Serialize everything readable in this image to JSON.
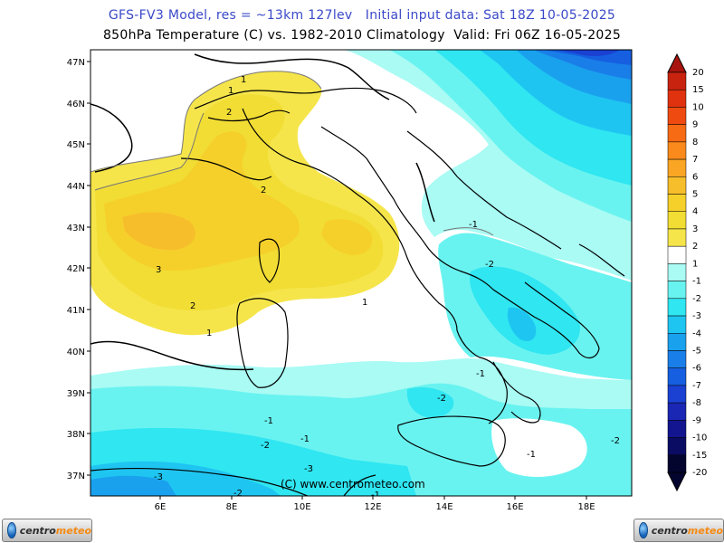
{
  "header": {
    "title_line1": "GFS-FV3 Model, res = ~13km 127lev   Initial input data: Sat 18Z 10-05-2025",
    "title_line2": "850hPa Temperature (C) vs. 1982-2010 Climatology  Valid: Fri 06Z 16-05-2025"
  },
  "map": {
    "lat_labels": [
      "47N",
      "46N",
      "45N",
      "44N",
      "43N",
      "42N",
      "41N",
      "40N",
      "39N",
      "38N",
      "37N"
    ],
    "lon_labels": [
      "6E",
      "8E",
      "10E",
      "12E",
      "14E",
      "16E",
      "18E"
    ],
    "copyright": "(C) www.centrometeo.com",
    "contour_labels": [
      "1",
      "1",
      "2",
      "2",
      "3",
      "2",
      "1",
      "1",
      "-1",
      "-1",
      "-2",
      "-1",
      "-2",
      "-1",
      "-2",
      "-1",
      "-2",
      "-3",
      "-3",
      "-2",
      "-1"
    ]
  },
  "colorbar": {
    "levels": [
      "20",
      "15",
      "10",
      "9",
      "8",
      "7",
      "6",
      "5",
      "4",
      "3",
      "2",
      "1",
      "-1",
      "-2",
      "-3",
      "-4",
      "-5",
      "-6",
      "-7",
      "-8",
      "-9",
      "-10",
      "-15",
      "-20"
    ],
    "colors": [
      "#a8140d",
      "#c8230f",
      "#e0320f",
      "#ef4b10",
      "#f76b14",
      "#f98a1b",
      "#faa524",
      "#f7be2b",
      "#f5d02b",
      "#f2dd34",
      "#f5e54a",
      "#ffffff",
      "#a9fbf4",
      "#69f3f0",
      "#2fe6f1",
      "#1fc5f1",
      "#1aa1ee",
      "#1a7ee8",
      "#155fe0",
      "#1a41d2",
      "#1a26b4",
      "#12158f",
      "#0a0c64",
      "#04052f"
    ]
  },
  "footer": {
    "logo_left": {
      "part1": "centro",
      "part2": "meteo"
    },
    "logo_right": {
      "part1": "centro",
      "part2": "meteo"
    }
  }
}
